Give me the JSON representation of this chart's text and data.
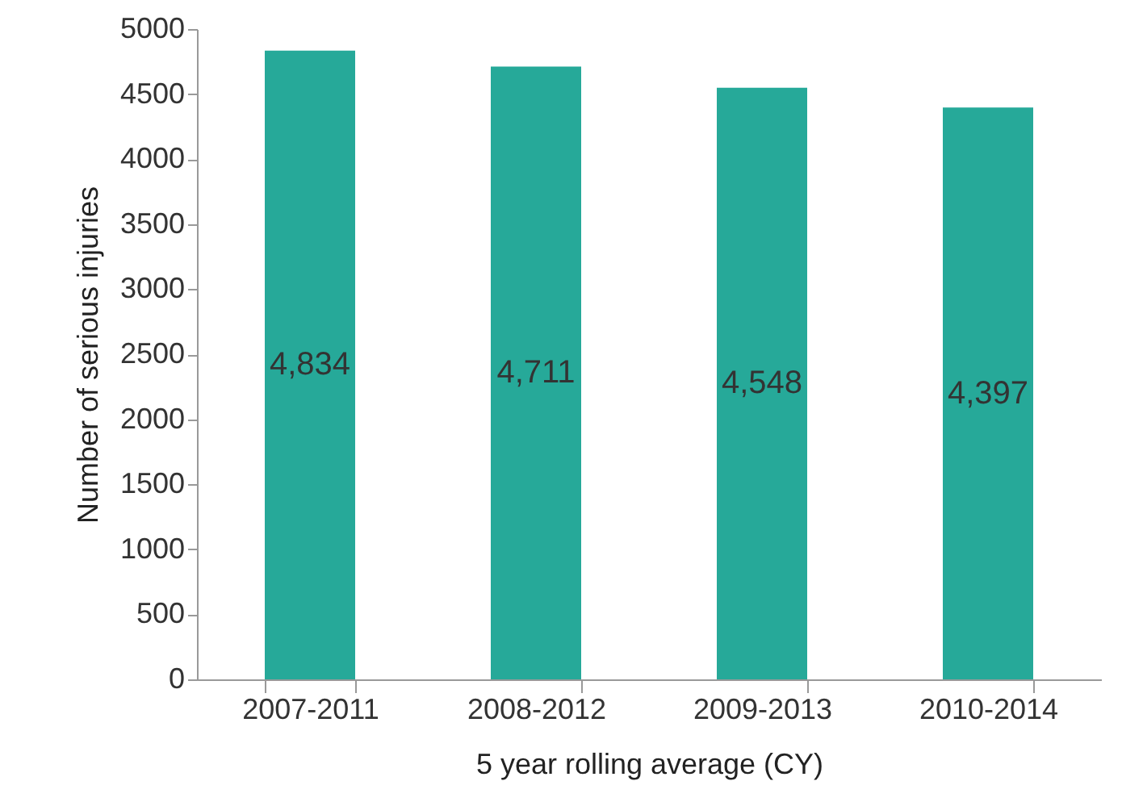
{
  "chart_data": {
    "type": "bar",
    "xlabel": "5 year rolling average (CY)",
    "ylabel": "Number of serious injuries",
    "categories": [
      "2007-2011",
      "2008-2012",
      "2009-2013",
      "2010-2014"
    ],
    "values": [
      4834,
      4711,
      4548,
      4397
    ],
    "value_labels": [
      "4,834",
      "4,711",
      "4,548",
      "4,397"
    ],
    "color": "#26a999",
    "ylim": [
      0,
      5000
    ],
    "yticks": [
      0,
      500,
      1000,
      1500,
      2000,
      2500,
      3000,
      3500,
      4000,
      4500,
      5000
    ],
    "grid": false
  }
}
